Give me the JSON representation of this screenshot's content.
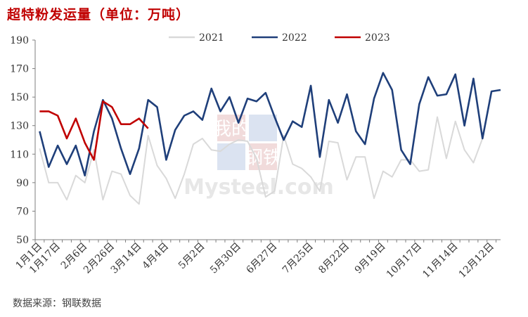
{
  "title": "超特粉发运量（单位：万吨）",
  "source": "数据来源：钢联数据",
  "watermark": {
    "top": "我的",
    "bottom": "钢铁",
    "brand": "Mysteel.com"
  },
  "chart_data": {
    "type": "line",
    "ylim": [
      50,
      190
    ],
    "yticks": [
      50,
      70,
      90,
      110,
      130,
      150,
      170,
      190
    ],
    "xlabels": [
      "1月1日",
      "1月17日",
      "2月6日",
      "2月26日",
      "3月14日",
      "4月4日",
      "5月2日",
      "5月30日",
      "6月27日",
      "7月25日",
      "8月22日",
      "9月19日",
      "10月17日",
      "11月14日",
      "12月12日"
    ],
    "xlabel_index": [
      0,
      2,
      5,
      8,
      11,
      14,
      18,
      22,
      26,
      30,
      34,
      38,
      42,
      46,
      50
    ],
    "grid": false,
    "legend_position": "top",
    "series": [
      {
        "name": "2021",
        "color": "#d9d9d9",
        "values": [
          114,
          90,
          90,
          78,
          95,
          90,
          113,
          78,
          98,
          96,
          81,
          75,
          123,
          102,
          93,
          79,
          96,
          117,
          121,
          113,
          112,
          117,
          120,
          119,
          107,
          80,
          84,
          123,
          103,
          100,
          94,
          84,
          119,
          118,
          92,
          108,
          108,
          79,
          98,
          94,
          106,
          106,
          98,
          99,
          136,
          107,
          133,
          113,
          104,
          121
        ]
      },
      {
        "name": "2022",
        "color": "#1f3f7a",
        "values": [
          126,
          101,
          116,
          103,
          116,
          95,
          126,
          148,
          135,
          114,
          96,
          114,
          148,
          143,
          106,
          127,
          137,
          140,
          134,
          156,
          140,
          150,
          132,
          149,
          147,
          153,
          136,
          120,
          133,
          129,
          158,
          108,
          148,
          132,
          152,
          126,
          117,
          149,
          167,
          155,
          113,
          103,
          145,
          164,
          151,
          152,
          166,
          130,
          163,
          121,
          154,
          155
        ]
      },
      {
        "name": "2023",
        "color": "#c00000",
        "values": [
          140,
          140,
          137,
          121,
          135,
          118,
          106,
          147,
          143,
          131,
          131,
          135,
          128
        ]
      }
    ]
  }
}
